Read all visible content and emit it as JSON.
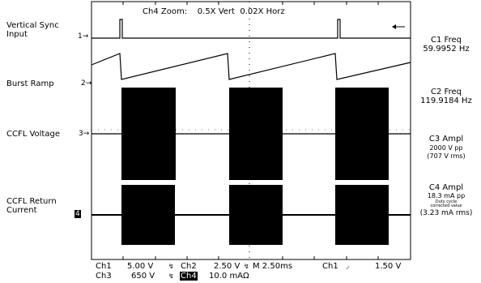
{
  "header": {
    "zoom_label": "Ch4 Zoom:",
    "vert": "0.5X Vert",
    "horz": "0.02X Horz"
  },
  "left_labels": {
    "vsync_line1": "Vertical Sync",
    "vsync_line2": "Input",
    "burst": "Burst Ramp",
    "ccfl_voltage": "CCFL Voltage",
    "ccfl_return_line1": "CCFL Return",
    "ccfl_return_line2": "Current"
  },
  "channel_markers": {
    "ch1": "1→",
    "ch2": "2→",
    "ch3": "3→",
    "ch4": "4"
  },
  "measurements": {
    "c1_title": "C1 Freq",
    "c1_value": "59.9952 Hz",
    "c2_title": "C2 Freq",
    "c2_value": "119.9184 Hz",
    "c3_title": "C3 Ampl",
    "c3_value": "2000 V pp",
    "c3_rms": "(707 V rms)",
    "c4_title": "C4 Ampl",
    "c4_value": "18.3 mA pp",
    "c4_note_line1": "Duty cycle",
    "c4_note_line2": "corrected value",
    "c4_rms": "(3.23 mA rms)"
  },
  "footer": {
    "row1_ch1": "Ch1",
    "row1_ch1_scale": "5.00 V",
    "row1_ch2": "Ch2",
    "row1_ch2_scale": "2.50 V",
    "row1_time": "M 2.50ms",
    "row1_trig": "Ch1",
    "row1_trig_level": "1.50 V",
    "row2_ch3": "Ch3",
    "row2_ch3_scale": "650 V",
    "row2_ch4": "Ch4",
    "row2_ch4_scale": "10.0 mAΩ"
  },
  "colors": {
    "trace": "#000000",
    "background": "#ffffff"
  }
}
